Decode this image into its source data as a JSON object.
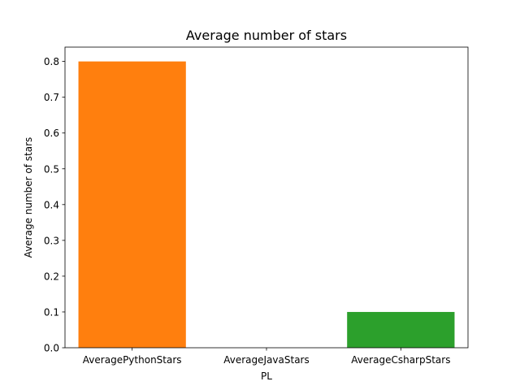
{
  "chart_data": {
    "type": "bar",
    "title": "Average number of stars",
    "xlabel": "PL",
    "ylabel": "Average number of stars",
    "categories": [
      "AveragePythonStars",
      "AverageJavaStars",
      "AverageCsharpStars"
    ],
    "values": [
      0.8,
      0.0,
      0.1
    ],
    "colors": [
      "#ff7f0e",
      "#1f77b4",
      "#2ca02c"
    ],
    "ylim": [
      0,
      0.84
    ],
    "yticks": [
      "0.0",
      "0.1",
      "0.2",
      "0.3",
      "0.4",
      "0.5",
      "0.6",
      "0.7",
      "0.8"
    ],
    "grid": false,
    "legend": "none"
  }
}
